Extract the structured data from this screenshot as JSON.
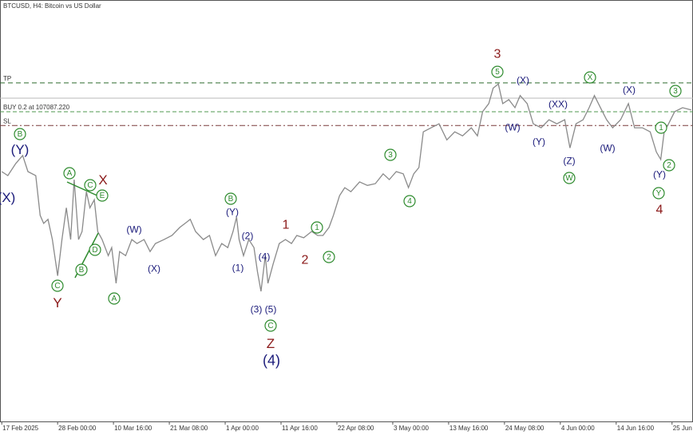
{
  "chart_data": {
    "type": "line",
    "title": "BTCUSD, H4:  Bitcoin vs US Dollar",
    "x": [
      0,
      7,
      16,
      24,
      30,
      39,
      44,
      48,
      53,
      58,
      64,
      69,
      74,
      79,
      83,
      88,
      92,
      97,
      101,
      106,
      110,
      115,
      122,
      126,
      131,
      135,
      142,
      149,
      155,
      163,
      170,
      176,
      186,
      195,
      204,
      210,
      216,
      222,
      231,
      238,
      245,
      252,
      259,
      265,
      269,
      272,
      277,
      283,
      289,
      293,
      297,
      302,
      305,
      311,
      318,
      325,
      332,
      338,
      346,
      355,
      362,
      368,
      375,
      380,
      387,
      393,
      400,
      410,
      419,
      428,
      437,
      444,
      452,
      460,
      466,
      472,
      478,
      483,
      492,
      501,
      510,
      519,
      528,
      538,
      545,
      551,
      558,
      563,
      569,
      574,
      581,
      588,
      594,
      602,
      609,
      618,
      627,
      636,
      645,
      651,
      658,
      666,
      673,
      679,
      686,
      693,
      700,
      709,
      718,
      725,
      734,
      743,
      750,
      755,
      759,
      764,
      771,
      780,
      790
    ],
    "series": [
      {
        "color": "#8a8a8a",
        "values": [
          96700,
          96000,
          98100,
          99500,
          96700,
          96000,
          89100,
          87700,
          88400,
          84900,
          78600,
          84900,
          90400,
          84900,
          95300,
          84900,
          86300,
          93200,
          90400,
          91800,
          86300,
          84900,
          82100,
          83500,
          77300,
          82800,
          82100,
          84900,
          84200,
          84900,
          82800,
          84200,
          84900,
          85600,
          87000,
          87700,
          88400,
          86300,
          84900,
          85600,
          82100,
          84200,
          83500,
          86300,
          88800,
          84900,
          82100,
          84900,
          83500,
          79300,
          75900,
          82100,
          77300,
          80700,
          84200,
          84900,
          84200,
          85600,
          85200,
          86300,
          85600,
          85600,
          87000,
          89100,
          92500,
          93900,
          93200,
          94900,
          94300,
          94600,
          96300,
          95300,
          96700,
          96300,
          93900,
          96300,
          97400,
          103600,
          104300,
          105000,
          102200,
          103600,
          102900,
          104300,
          102900,
          107100,
          108500,
          111200,
          111900,
          108500,
          109200,
          107800,
          109900,
          108500,
          105000,
          104300,
          105700,
          105000,
          105700,
          100800,
          105000,
          105700,
          107800,
          109900,
          107800,
          105700,
          104300,
          105700,
          108500,
          104300,
          104300,
          103600,
          100100,
          98800,
          103600,
          105000,
          107100,
          107800,
          107400
        ]
      }
    ],
    "levels": [
      {
        "label": "TP",
        "value": 112100,
        "color": "#2e6b2e",
        "dash": "6,4"
      },
      {
        "label": "BUY 0.2 at 107087.220",
        "value": 107087.22,
        "color": "#4f9a4f",
        "dash": "5,3"
      },
      {
        "label": "SL",
        "value": 104700,
        "color": "#7a3a3a",
        "dash": "7,3,2,3"
      }
    ],
    "price_line": 109450,
    "xlim": [
      -2,
      792
    ],
    "ylim": [
      53300,
      126500
    ],
    "xticks": [
      {
        "value": 0,
        "label": "17 Feb 2025"
      },
      {
        "value": 64,
        "label": "28 Feb 00:00"
      },
      {
        "value": 128,
        "label": "10 Mar 16:00"
      },
      {
        "value": 192,
        "label": "21 Mar 08:00"
      },
      {
        "value": 256,
        "label": "1 Apr 00:00"
      },
      {
        "value": 320,
        "label": "11 Apr 16:00"
      },
      {
        "value": 384,
        "label": "22 Apr 08:00"
      },
      {
        "value": 448,
        "label": "3 May 00:00"
      },
      {
        "value": 512,
        "label": "13 May 16:00"
      },
      {
        "value": 576,
        "label": "24 May 08:00"
      },
      {
        "value": 640,
        "label": "4 Jun 00:00"
      },
      {
        "value": 704,
        "label": "14 Jun 16:00"
      },
      {
        "value": 768,
        "label": "25 Jun 08:00"
      }
    ],
    "annotations": [
      {
        "text": "B",
        "color": "#2e8b2e",
        "circled": true
      },
      {
        "text": "(Y)",
        "color": "#1a1a7a",
        "circled": false
      },
      {
        "text": "(X)",
        "color": "#1a1a7a",
        "circled": false
      },
      {
        "text": "A",
        "color": "#2e8b2e",
        "circled": true
      },
      {
        "text": "C",
        "color": "#2e8b2e",
        "circled": true
      },
      {
        "text": "E",
        "color": "#2e8b2e",
        "circled": true
      },
      {
        "text": "X",
        "color": "#8b1a1a",
        "circled": false
      },
      {
        "text": "D",
        "color": "#2e8b2e",
        "circled": true
      },
      {
        "text": "B",
        "color": "#2e8b2e",
        "circled": true
      },
      {
        "text": "C",
        "color": "#2e8b2e",
        "circled": true
      },
      {
        "text": "Y",
        "color": "#8b1a1a",
        "circled": false
      },
      {
        "text": "A",
        "color": "#2e8b2e",
        "circled": true
      },
      {
        "text": "(W)",
        "color": "#1a1a7a",
        "circled": false
      },
      {
        "text": "(X)",
        "color": "#1a1a7a",
        "circled": false
      },
      {
        "text": "B",
        "color": "#2e8b2e",
        "circled": true
      },
      {
        "text": "(Y)",
        "color": "#1a1a7a",
        "circled": false
      },
      {
        "text": "(2)",
        "color": "#1a1a7a",
        "circled": false
      },
      {
        "text": "(1)",
        "color": "#1a1a7a",
        "circled": false
      },
      {
        "text": "(4)",
        "color": "#1a1a7a",
        "circled": false
      },
      {
        "text": "(3)",
        "color": "#1a1a7a",
        "circled": false
      },
      {
        "text": "(5)",
        "color": "#1a1a7a",
        "circled": false
      },
      {
        "text": "C",
        "color": "#2e8b2e",
        "circled": true
      },
      {
        "text": "Z",
        "color": "#8b1a1a",
        "circled": false
      },
      {
        "text": "(4)",
        "color": "#1a1a7a",
        "circled": false
      },
      {
        "text": "1",
        "color": "#8b1a1a",
        "circled": false
      },
      {
        "text": "2",
        "color": "#8b1a1a",
        "circled": false
      },
      {
        "text": "1",
        "color": "#2e8b2e",
        "circled": true
      },
      {
        "text": "2",
        "color": "#2e8b2e",
        "circled": true
      },
      {
        "text": "3",
        "color": "#2e8b2e",
        "circled": true
      },
      {
        "text": "4",
        "color": "#2e8b2e",
        "circled": true
      },
      {
        "text": "3",
        "color": "#8b1a1a",
        "circled": false
      },
      {
        "text": "5",
        "color": "#2e8b2e",
        "circled": true
      },
      {
        "text": "(X)",
        "color": "#1a1a7a",
        "circled": false
      },
      {
        "text": "(W)",
        "color": "#1a1a7a",
        "circled": false
      },
      {
        "text": "(Y)",
        "color": "#1a1a7a",
        "circled": false
      },
      {
        "text": "(XX)",
        "color": "#1a1a7a",
        "circled": false
      },
      {
        "text": "(Z)",
        "color": "#1a1a7a",
        "circled": false
      },
      {
        "text": "W",
        "color": "#2e8b2e",
        "circled": true
      },
      {
        "text": "X",
        "color": "#2e8b2e",
        "circled": true
      },
      {
        "text": "(X)",
        "color": "#1a1a7a",
        "circled": false
      },
      {
        "text": "(W)",
        "color": "#1a1a7a",
        "circled": false
      },
      {
        "text": "3",
        "color": "#2e8b2e",
        "circled": true
      },
      {
        "text": "1",
        "color": "#2e8b2e",
        "circled": true
      },
      {
        "text": "2",
        "color": "#2e8b2e",
        "circled": true
      },
      {
        "text": "(Y)",
        "color": "#1a1a7a",
        "circled": false
      },
      {
        "text": "Y",
        "color": "#2e8b2e",
        "circled": true
      },
      {
        "text": "4",
        "color": "#8b1a1a",
        "circled": false
      }
    ]
  }
}
